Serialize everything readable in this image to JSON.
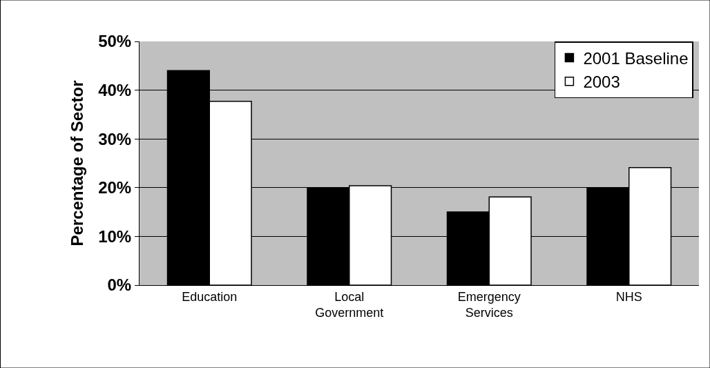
{
  "chart_data": {
    "type": "bar",
    "ylabel": "Percentage of Sector",
    "categories": [
      "Education",
      "Local Government",
      "Emergency Services",
      "NHS"
    ],
    "series": [
      {
        "name": "2001 Baseline",
        "color": "#000000",
        "values": [
          44,
          20,
          15,
          20
        ]
      },
      {
        "name": "2003",
        "color": "#ffffff",
        "values": [
          37.7,
          20.4,
          18.1,
          24.1
        ]
      }
    ],
    "ylim": [
      0,
      50
    ],
    "yticks": [
      {
        "value": 0,
        "label": "0%"
      },
      {
        "value": 10,
        "label": "10%"
      },
      {
        "value": 20,
        "label": "20%"
      },
      {
        "value": 30,
        "label": "30%"
      },
      {
        "value": 40,
        "label": "40%"
      },
      {
        "value": 50,
        "label": "50%"
      }
    ],
    "grid": "y",
    "legend": "top right"
  }
}
